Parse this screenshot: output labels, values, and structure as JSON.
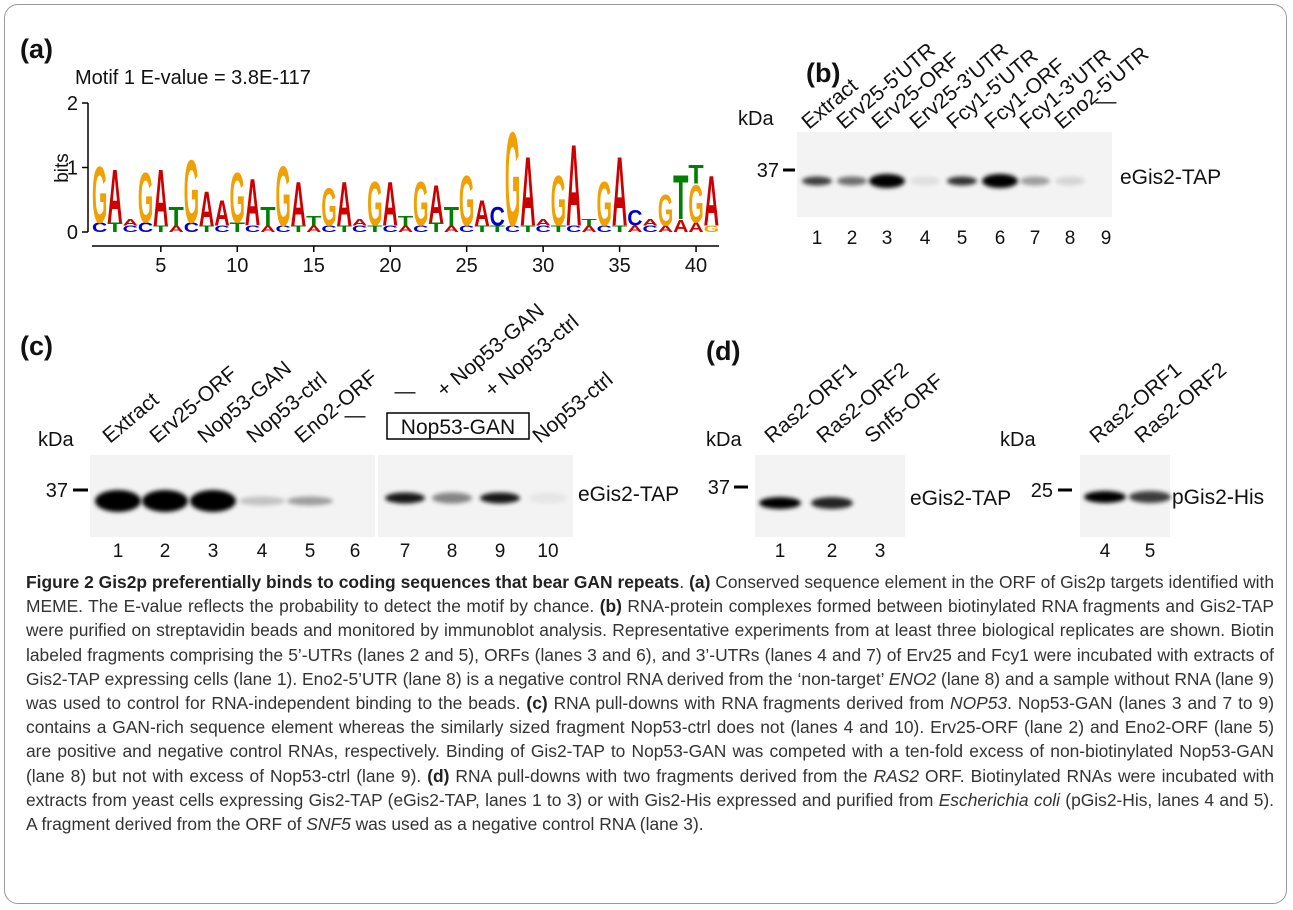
{
  "figure": {
    "a": {
      "label": "(a)",
      "title": "Motif 1 E-value = 3.8E-117",
      "ylabel": "bits",
      "xlim": [
        0.5,
        41.5
      ],
      "ylim": [
        0,
        2
      ],
      "xticks": [
        5,
        10,
        15,
        20,
        25,
        30,
        35,
        40
      ],
      "yticks": [
        0,
        1,
        2
      ],
      "colors": {
        "A": "#cc0000",
        "C": "#0000cc",
        "G": "#f0a000",
        "T": "#008000"
      },
      "logo": [
        {
          "letters": [
            "C",
            "G"
          ],
          "bits": [
            0.15,
            0.9
          ]
        },
        {
          "letters": [
            "T",
            "A"
          ],
          "bits": [
            0.15,
            0.85
          ]
        },
        {
          "letters": [
            "C",
            "A"
          ],
          "bits": [
            0.1,
            0.1
          ]
        },
        {
          "letters": [
            "C",
            "G"
          ],
          "bits": [
            0.15,
            0.8
          ]
        },
        {
          "letters": [
            "T",
            "A"
          ],
          "bits": [
            0.1,
            0.9
          ]
        },
        {
          "letters": [
            "A",
            "T"
          ],
          "bits": [
            0.1,
            0.3
          ]
        },
        {
          "letters": [
            "C",
            "G"
          ],
          "bits": [
            0.15,
            1.0
          ]
        },
        {
          "letters": [
            "T",
            "A"
          ],
          "bits": [
            0.1,
            0.55
          ]
        },
        {
          "letters": [
            "C",
            "A"
          ],
          "bits": [
            0.1,
            0.4
          ]
        },
        {
          "letters": [
            "T",
            "G"
          ],
          "bits": [
            0.15,
            0.8
          ]
        },
        {
          "letters": [
            "C",
            "A"
          ],
          "bits": [
            0.1,
            0.75
          ]
        },
        {
          "letters": [
            "A",
            "T"
          ],
          "bits": [
            0.1,
            0.3
          ]
        },
        {
          "letters": [
            "C",
            "G"
          ],
          "bits": [
            0.1,
            0.95
          ]
        },
        {
          "letters": [
            "T",
            "A"
          ],
          "bits": [
            0.1,
            0.7
          ]
        },
        {
          "letters": [
            "A",
            "T"
          ],
          "bits": [
            0.1,
            0.15
          ]
        },
        {
          "letters": [
            "C",
            "G"
          ],
          "bits": [
            0.1,
            0.6
          ]
        },
        {
          "letters": [
            "T",
            "A"
          ],
          "bits": [
            0.1,
            0.7
          ]
        },
        {
          "letters": [
            "C",
            "A"
          ],
          "bits": [
            0.1,
            0.1
          ]
        },
        {
          "letters": [
            "T",
            "G"
          ],
          "bits": [
            0.1,
            0.7
          ]
        },
        {
          "letters": [
            "C",
            "A"
          ],
          "bits": [
            0.1,
            0.7
          ]
        },
        {
          "letters": [
            "A",
            "T"
          ],
          "bits": [
            0.1,
            0.15
          ]
        },
        {
          "letters": [
            "C",
            "G"
          ],
          "bits": [
            0.1,
            0.7
          ]
        },
        {
          "letters": [
            "T",
            "A"
          ],
          "bits": [
            0.15,
            0.6
          ]
        },
        {
          "letters": [
            "A",
            "T"
          ],
          "bits": [
            0.1,
            0.3
          ]
        },
        {
          "letters": [
            "C",
            "G"
          ],
          "bits": [
            0.1,
            0.8
          ]
        },
        {
          "letters": [
            "T",
            "A"
          ],
          "bits": [
            0.1,
            0.4
          ]
        },
        {
          "letters": [
            "T",
            "C"
          ],
          "bits": [
            0.1,
            0.3
          ]
        },
        {
          "letters": [
            "C",
            "G"
          ],
          "bits": [
            0.1,
            1.5
          ]
        },
        {
          "letters": [
            "T",
            "A"
          ],
          "bits": [
            0.1,
            1.1
          ]
        },
        {
          "letters": [
            "C",
            "A"
          ],
          "bits": [
            0.1,
            0.1
          ]
        },
        {
          "letters": [
            "T",
            "G"
          ],
          "bits": [
            0.1,
            0.8
          ]
        },
        {
          "letters": [
            "C",
            "A"
          ],
          "bits": [
            0.1,
            1.3
          ]
        },
        {
          "letters": [
            "A",
            "T"
          ],
          "bits": [
            0.1,
            0.1
          ]
        },
        {
          "letters": [
            "C",
            "G"
          ],
          "bits": [
            0.1,
            0.7
          ]
        },
        {
          "letters": [
            "T",
            "A"
          ],
          "bits": [
            0.1,
            1.1
          ]
        },
        {
          "letters": [
            "A",
            "C"
          ],
          "bits": [
            0.1,
            0.25
          ]
        },
        {
          "letters": [
            "C",
            "A"
          ],
          "bits": [
            0.1,
            0.1
          ]
        },
        {
          "letters": [
            "A",
            "G"
          ],
          "bits": [
            0.1,
            0.5
          ]
        },
        {
          "letters": [
            "A",
            "T"
          ],
          "bits": [
            0.2,
            0.7
          ]
        },
        {
          "letters": [
            "A",
            "G",
            "T"
          ],
          "bits": [
            0.15,
            0.6,
            0.3
          ]
        },
        {
          "letters": [
            "G",
            "A"
          ],
          "bits": [
            0.1,
            0.8
          ]
        }
      ]
    },
    "b": {
      "label": "(b)",
      "kda": "kDa",
      "marker": "37",
      "protein": "eGis2-TAP",
      "lanes": [
        "Extract",
        "Erv25-5'UTR",
        "Erv25-ORF",
        "Erv25-3'UTR",
        "Fcy1-5'UTR",
        "Fcy1-ORF",
        "Fcy1-3'UTR",
        "Eno2-5'UTR",
        "—"
      ],
      "numbers": [
        "1",
        "2",
        "3",
        "4",
        "5",
        "6",
        "7",
        "8",
        "9"
      ]
    },
    "c": {
      "label": "(c)",
      "kda": "kDa",
      "marker": "37",
      "protein": "eGis2-TAP",
      "box": "Nop53-GAN",
      "lanes": [
        "Extract",
        "Erv25-ORF",
        "Nop53-GAN",
        "Nop53-ctrl",
        "Eno2-ORF",
        "—",
        "—",
        "+ Nop53-GAN",
        "+ Nop53-ctrl",
        "Nop53-ctrl"
      ],
      "numbers": [
        "1",
        "2",
        "3",
        "4",
        "5",
        "6",
        "7",
        "8",
        "9",
        "10"
      ]
    },
    "d": {
      "label": "(d)",
      "blots": [
        {
          "kda": "kDa",
          "marker": "37",
          "protein": "eGis2-TAP",
          "lanes": [
            "Ras2-ORF1",
            "Ras2-ORF2",
            "Snf5-ORF"
          ],
          "numbers": [
            "1",
            "2",
            "3"
          ]
        },
        {
          "kda": "kDa",
          "marker": "25",
          "protein": "pGis2-His",
          "lanes": [
            "Ras2-ORF1",
            "Ras2-ORF2"
          ],
          "numbers": [
            "4",
            "5"
          ]
        }
      ]
    }
  },
  "caption": [
    {
      "text": "Figure 2 Gis2p preferentially binds to coding sequences that bear GAN repeats",
      "bold": true
    },
    {
      "text": ". "
    },
    {
      "text": "(a)",
      "bold": true
    },
    {
      "text": " Conserved sequence element in the ORF of Gis2p targets identified with MEME. The E-value reflects the probability to detect the motif by chance. "
    },
    {
      "text": "(b)",
      "bold": true
    },
    {
      "text": " RNA-protein complexes formed between biotinylated RNA fragments and Gis2-TAP were purified on streptavidin beads and monitored by immunoblot analysis. Representative experiments from at least three biological replicates are shown. Biotin labeled fragments comprising the 5’-UTRs (lanes 2 and 5), ORFs (lanes 3 and 6), and 3’-UTRs (lanes 4 and 7) of Erv25 and Fcy1 were incubated with extracts of Gis2-TAP expressing cells (lane 1). Eno2-5’UTR (lane 8) is a negative control RNA derived from the ‘non-target’ "
    },
    {
      "text": "ENO2",
      "italic": true
    },
    {
      "text": " (lane 8) and a sample without RNA (lane 9) was used to control for RNA-independent binding to the beads. "
    },
    {
      "text": "(c)",
      "bold": true
    },
    {
      "text": " RNA pull-downs with RNA fragments derived from "
    },
    {
      "text": "NOP53",
      "italic": true
    },
    {
      "text": ". Nop53-GAN (lanes 3 and 7 to 9) contains a GAN-rich sequence element whereas the similarly sized fragment Nop53-ctrl does not (lanes 4 and 10). Erv25-ORF (lane 2) and Eno2-ORF (lane 5) are positive and negative control RNAs, respectively. Binding of Gis2-TAP to Nop53-GAN was competed with a ten-fold excess of non-biotinylated Nop53-GAN (lane 8) but not with excess of Nop53-ctrl (lane 9). "
    },
    {
      "text": "(d)",
      "bold": true
    },
    {
      "text": " RNA pull-downs with two fragments derived from the "
    },
    {
      "text": "RAS2",
      "italic": true
    },
    {
      "text": " ORF. Biotinylated RNAs were incubated with extracts from yeast cells expressing Gis2-TAP (eGis2-TAP, lanes 1 to 3) or with Gis2-His expressed and purified from "
    },
    {
      "text": "Escherichia coli",
      "italic": true
    },
    {
      "text": " (pGis2-His, lanes 4 and 5). A fragment derived from the ORF of "
    },
    {
      "text": "SNF5",
      "italic": true
    },
    {
      "text": " was used as a negative control RNA (lane 3)."
    }
  ]
}
